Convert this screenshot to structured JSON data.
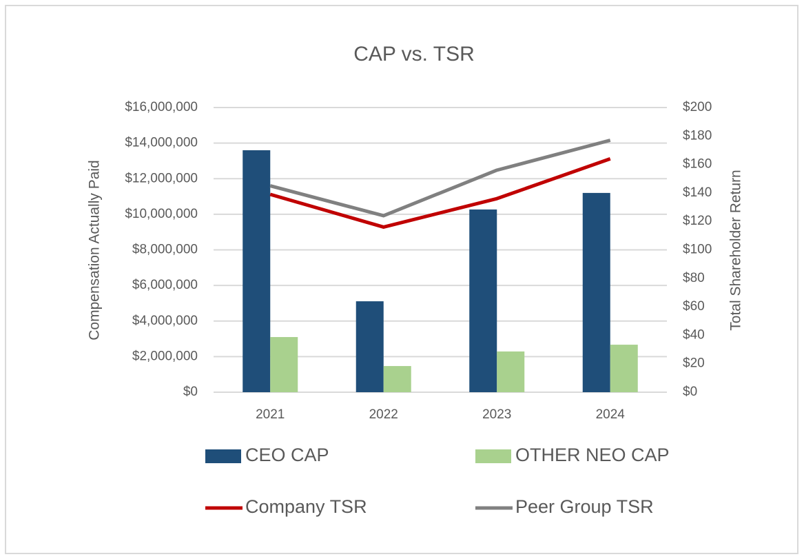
{
  "chart_data": {
    "type": "bar",
    "title": "CAP vs. TSR",
    "y_label": "Compensation Actually Paid",
    "y2_label": "Total Shareholder Return",
    "categories": [
      "2021",
      "2022",
      "2023",
      "2024"
    ],
    "series": [
      {
        "name": "CEO CAP",
        "type": "bar",
        "color": "#1f4e79",
        "values": [
          13600000,
          5110000,
          10270000,
          11200000
        ]
      },
      {
        "name": "OTHER NEO CAP",
        "type": "bar",
        "color": "#a9d18e",
        "values": [
          3100000,
          1470000,
          2290000,
          2670000
        ]
      },
      {
        "name": "Company TSR",
        "type": "line",
        "axis": "y2",
        "color": "#c00000",
        "values": [
          139,
          116,
          136,
          164
        ]
      },
      {
        "name": "Peer Group TSR",
        "type": "line",
        "axis": "y2",
        "color": "#808080",
        "values": [
          145,
          124,
          156,
          177
        ]
      }
    ],
    "ylim": [
      0,
      16000000
    ],
    "yticks": [
      {
        "value": 0,
        "label": "$0"
      },
      {
        "value": 2000000,
        "label": "$2,000,000"
      },
      {
        "value": 4000000,
        "label": "$4,000,000"
      },
      {
        "value": 6000000,
        "label": "$6,000,000"
      },
      {
        "value": 8000000,
        "label": "$8,000,000"
      },
      {
        "value": 10000000,
        "label": "$10,000,000"
      },
      {
        "value": 12000000,
        "label": "$12,000,000"
      },
      {
        "value": 14000000,
        "label": "$14,000,000"
      },
      {
        "value": 16000000,
        "label": "$16,000,000"
      }
    ],
    "y2lim": [
      0,
      200
    ],
    "y2ticks": [
      {
        "value": 0,
        "label": "$0"
      },
      {
        "value": 20,
        "label": "$20"
      },
      {
        "value": 40,
        "label": "$40"
      },
      {
        "value": 60,
        "label": "$60"
      },
      {
        "value": 80,
        "label": "$80"
      },
      {
        "value": 100,
        "label": "$100"
      },
      {
        "value": 120,
        "label": "$120"
      },
      {
        "value": 140,
        "label": "$140"
      },
      {
        "value": 160,
        "label": "$160"
      },
      {
        "value": 180,
        "label": "$180"
      },
      {
        "value": 200,
        "label": "$200"
      }
    ],
    "grid": true,
    "legend": "bottom"
  }
}
